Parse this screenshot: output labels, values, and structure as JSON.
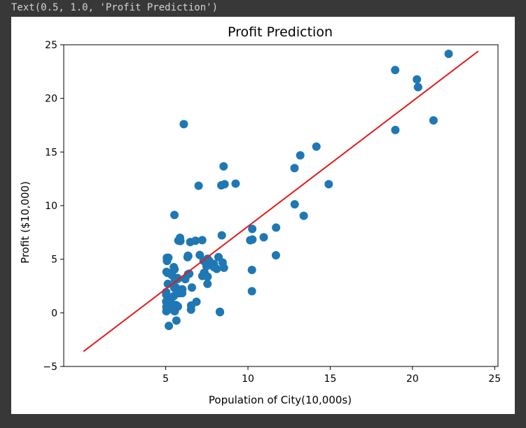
{
  "output": {
    "text_repr": "Text(0.5, 1.0, 'Profit Prediction')"
  },
  "colors": {
    "background": "#383838",
    "figure": "#ffffff",
    "points": "#1f77b4",
    "line": "#e31a1c"
  },
  "chart_data": {
    "type": "scatter",
    "title": "Profit Prediction",
    "xlabel": "Population of City(10,000s)",
    "ylabel": "Profit ($10,000)",
    "xlim": [
      -1.2,
      25.2
    ],
    "ylim": [
      -5,
      25
    ],
    "xticks": [
      5,
      10,
      15,
      20,
      25
    ],
    "yticks": [
      -5,
      0,
      5,
      10,
      15,
      20,
      25
    ],
    "grid": false,
    "series": [
      {
        "kind": "points",
        "x": [
          6.1,
          5.53,
          8.52,
          7.0,
          5.86,
          8.38,
          7.48,
          8.58,
          6.49,
          5.05,
          5.71,
          14.16,
          5.73,
          8.41,
          5.64,
          5.38,
          6.37,
          5.13,
          6.43,
          7.07,
          6.19,
          20.27,
          5.49,
          6.33,
          5.56,
          18.95,
          12.83,
          10.96,
          13.18,
          22.2,
          5.25,
          6.59,
          9.25,
          5.89,
          8.21,
          7.93,
          8.1,
          5.61,
          12.84,
          6.35,
          5.41,
          6.87,
          5.65,
          6.36,
          5.11,
          11.71,
          5.77,
          7.78,
          7.22,
          8.54,
          7.93,
          5.16,
          5.52,
          5.74,
          8.46,
          6.81,
          7.64,
          5.87,
          5.37,
          10.27,
          5.49,
          10.26,
          5.07,
          5.8,
          11.7,
          5.54,
          7.54,
          5.03,
          10.24,
          5.08,
          5.13,
          20.34,
          10.14,
          7.33,
          6.01,
          7.23,
          5.03,
          6.55,
          7.54,
          5.04,
          10.24,
          5.5,
          20.34,
          10.14,
          7.36,
          6.0,
          7.3,
          5.03,
          6.54,
          7.54,
          5.04,
          8.29,
          5.19,
          6.55,
          7.54,
          5.55,
          8.3,
          13.39,
          14.91,
          21.28,
          18.96
        ],
        "y": [
          17.6,
          9.13,
          13.66,
          11.85,
          6.82,
          11.89,
          4.35,
          12.0,
          6.6,
          3.82,
          3.25,
          15.5,
          3.16,
          7.23,
          0.72,
          3.51,
          5.3,
          0.56,
          3.65,
          5.39,
          3.14,
          21.77,
          4.26,
          5.19,
          3.08,
          22.64,
          13.5,
          7.05,
          14.69,
          24.15,
          1.22,
          2.36,
          12.05,
          6.7,
          5.2,
          4.56,
          4.1,
          2.38,
          10.12,
          5.33,
          0.83,
          1.03,
          -0.72,
          3.61,
          3.72,
          7.95,
          6.74,
          4.49,
          6.78,
          4.2,
          4.26,
          5.14,
          2.34,
          0.59,
          4.69,
          6.72,
          4.85,
          7.0,
          3.53,
          6.84,
          1.56,
          7.82,
          5.13,
          1.83,
          5.37,
          4.06,
          5.04,
          1.06,
          4.0,
          4.84,
          2.7,
          21.05,
          6.77,
          3.73,
          2.2,
          3.44,
          1.69,
          0.68,
          3.37,
          0.15,
          2.02,
          0.21,
          21.05,
          6.77,
          3.73,
          1.84,
          4.85,
          1.93,
          0.3,
          2.7,
          0.55,
          0.1,
          -1.22,
          0.68,
          3.37,
          0.15,
          0.06,
          9.05,
          12.0,
          17.95,
          17.05
        ]
      },
      {
        "kind": "line",
        "x": [
          0.0,
          24.0
        ],
        "y": [
          -3.6,
          24.4
        ]
      }
    ]
  }
}
